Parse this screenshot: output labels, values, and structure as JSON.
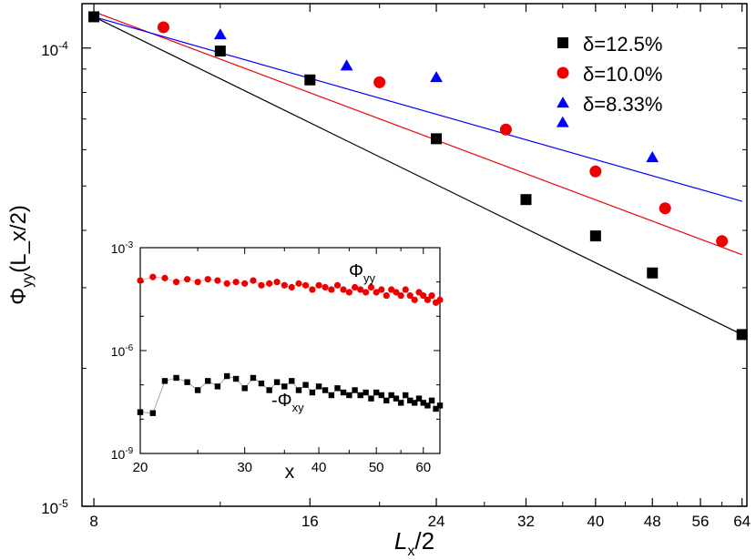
{
  "chart_data": [
    {
      "type": "scatter",
      "title": "",
      "xlabel": "L_x/2",
      "ylabel": "Φ_yy(L_x/2)",
      "xscale": "log",
      "yscale": "log",
      "xlim": [
        7.7,
        65
      ],
      "ylim": [
        1e-05,
        0.000125
      ],
      "x_ticks": [
        8,
        16,
        24,
        32,
        40,
        48,
        56,
        64
      ],
      "x_tick_labels": [
        "8",
        "16",
        "24",
        "32",
        "40",
        "48",
        "56",
        "64"
      ],
      "y_ticks": [
        1e-05,
        0.0001
      ],
      "y_tick_labels": [
        {
          "base": "10",
          "exp": "-5"
        },
        {
          "base": "10",
          "exp": "-4"
        }
      ],
      "legend_placement": "top-right",
      "grid": false,
      "series": [
        {
          "name": "δ=12.5%",
          "marker": "square",
          "color": "#000000",
          "x": [
            8,
            12,
            16,
            24,
            32,
            40,
            48,
            64
          ],
          "y": [
            0.000117,
            9.85e-05,
            8.52e-05,
            6.34e-05,
            4.67e-05,
            3.89e-05,
            3.23e-05,
            2.37e-05
          ]
        },
        {
          "name": "δ=10.0%",
          "marker": "circle",
          "color": "#ee0000",
          "x": [
            10,
            20,
            30,
            40,
            50,
            60
          ],
          "y": [
            0.000111,
            8.42e-05,
            6.64e-05,
            5.38e-05,
            4.47e-05,
            3.79e-05
          ]
        },
        {
          "name": "δ=8.33%",
          "marker": "triangle",
          "color": "#0000ff",
          "x": [
            12,
            18,
            24,
            36,
            48
          ],
          "y": [
            0.000107,
            9.15e-05,
            8.63e-05,
            6.88e-05,
            5.77e-05
          ]
        }
      ],
      "fit_lines": [
        {
          "series": "δ=12.5%",
          "color": "#000000",
          "x": [
            8,
            64
          ],
          "y": [
            0.000117,
            2.37e-05
          ]
        },
        {
          "series": "δ=10.0%",
          "color": "#ee0000",
          "x": [
            8,
            64
          ],
          "y": [
            0.00012,
            3.54e-05
          ]
        },
        {
          "series": "δ=8.33%",
          "color": "#0000ff",
          "x": [
            8,
            64
          ],
          "y": [
            0.000117,
            4.63e-05
          ]
        }
      ]
    },
    {
      "type": "scatter",
      "title": "",
      "xlabel": "x",
      "ylabel": "",
      "xscale": "log",
      "yscale": "log",
      "xlim": [
        20,
        64
      ],
      "ylim": [
        1e-09,
        0.001
      ],
      "x_ticks": [
        20,
        30,
        40,
        50,
        60
      ],
      "x_tick_labels": [
        "20",
        "30",
        "40",
        "50",
        "60"
      ],
      "y_ticks": [
        1e-09,
        1e-06,
        0.001
      ],
      "y_tick_labels": [
        {
          "base": "10",
          "exp": "-9"
        },
        {
          "base": "10",
          "exp": "-6"
        },
        {
          "base": "10",
          "exp": "-3"
        }
      ],
      "annotations": [
        {
          "base": "Φ",
          "sub": "yy"
        },
        {
          "base": "-Φ",
          "sub": "xy"
        }
      ],
      "series": [
        {
          "name": "Φ_yy",
          "marker": "circle",
          "color": "#ee0000",
          "x": [
            20,
            21,
            22,
            23,
            24,
            25,
            26,
            27,
            28,
            29,
            30,
            31,
            32,
            33,
            34,
            35,
            36,
            37,
            38,
            39,
            40,
            41,
            42,
            43,
            44,
            45,
            46,
            47,
            48,
            49,
            50,
            51,
            52,
            53,
            54,
            55,
            56,
            57,
            58,
            59,
            60,
            61,
            62,
            63,
            64
          ],
          "y": [
            0.00011,
            0.00014,
            0.00013,
            0.0001,
            0.00012,
            0.0001,
            0.00012,
            0.00011,
            9e-05,
            0.0001,
            9e-05,
            0.00011,
            8e-05,
            9e-05,
            0.0001,
            8e-05,
            7e-05,
            9e-05,
            8e-05,
            6e-05,
            8e-05,
            7e-05,
            6e-05,
            8e-05,
            6e-05,
            5e-05,
            7e-05,
            6e-05,
            5e-05,
            7e-05,
            5e-05,
            6e-05,
            4e-05,
            6e-05,
            5e-05,
            4e-05,
            6e-05,
            4e-05,
            3e-05,
            5e-05,
            4e-05,
            3e-05,
            4e-05,
            2.5e-05,
            3e-05
          ]
        },
        {
          "name": "-Φ_xy",
          "marker": "square",
          "color": "#000000",
          "x": [
            20,
            21,
            22,
            23,
            24,
            25,
            26,
            27,
            28,
            29,
            30,
            31,
            32,
            33,
            34,
            35,
            36,
            37,
            38,
            39,
            40,
            41,
            42,
            43,
            44,
            45,
            46,
            47,
            48,
            49,
            50,
            51,
            52,
            53,
            54,
            55,
            56,
            57,
            58,
            59,
            60,
            61,
            62,
            63,
            64
          ],
          "y": [
            1.6e-08,
            1.5e-08,
            1.3e-07,
            1.6e-07,
            1.2e-07,
            7e-08,
            1.3e-07,
            9e-08,
            1.8e-07,
            1.5e-07,
            8e-08,
            1.6e-07,
            1.1e-07,
            7e-08,
            1.2e-07,
            9e-08,
            1.3e-07,
            7e-08,
            1e-07,
            6e-08,
            9e-08,
            7e-08,
            5e-08,
            8e-08,
            6e-08,
            5e-08,
            7e-08,
            5e-08,
            6e-08,
            4e-08,
            6e-08,
            5e-08,
            3.5e-08,
            5e-08,
            4e-08,
            3e-08,
            5e-08,
            3.5e-08,
            3e-08,
            4e-08,
            3e-08,
            2.5e-08,
            3.5e-08,
            2e-08,
            2.5e-08
          ]
        }
      ]
    }
  ]
}
